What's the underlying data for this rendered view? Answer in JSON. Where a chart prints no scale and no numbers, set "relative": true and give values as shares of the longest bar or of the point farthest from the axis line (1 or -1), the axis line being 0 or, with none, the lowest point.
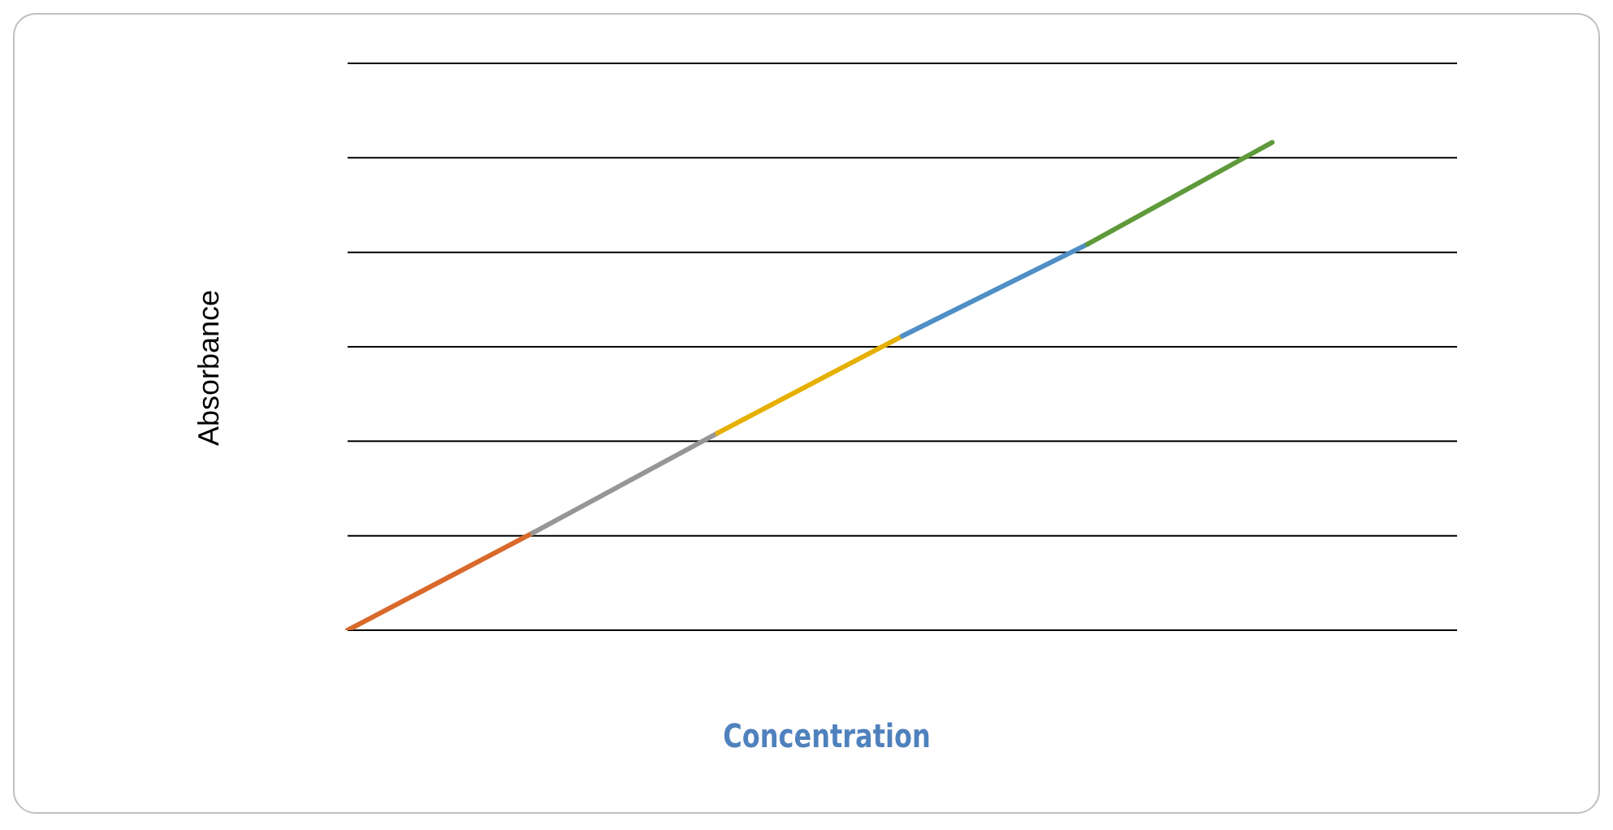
{
  "chart_data": {
    "type": "line",
    "xlabel": "Concentration",
    "ylabel": "Absorbance",
    "relative": true,
    "grid": "y",
    "marker": "none",
    "line_style": "solid",
    "categories": [
      null,
      null,
      null,
      null,
      null,
      null,
      null
    ],
    "series": [
      {
        "color": "#d9692b",
        "values": [
          0,
          0.199,
          null,
          null,
          null,
          null,
          null
        ]
      },
      {
        "color": "#969696",
        "values": [
          null,
          0.199,
          0.404,
          null,
          null,
          null,
          null
        ]
      },
      {
        "color": "#e6b000",
        "values": [
          null,
          null,
          0.404,
          0.603,
          null,
          null,
          null
        ]
      },
      {
        "color": "#4f8fc6",
        "values": [
          null,
          null,
          null,
          0.603,
          0.791,
          null,
          null
        ]
      },
      {
        "color": "#5f9a3a",
        "values": [
          null,
          null,
          null,
          null,
          0.791,
          1,
          null
        ]
      }
    ]
  }
}
